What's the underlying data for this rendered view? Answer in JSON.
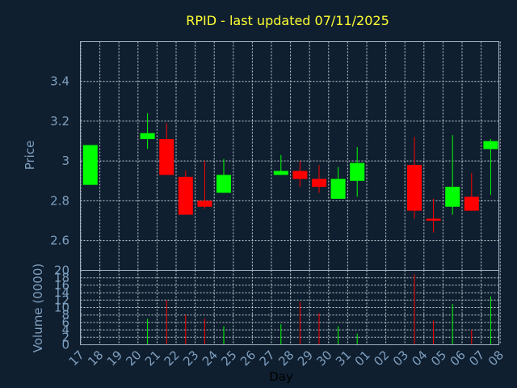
{
  "chart_data": {
    "type": "candlestick",
    "title": "RPID - last updated 07/11/2025",
    "xlabel": "Day",
    "ylabel_price": "Price",
    "ylabel_volume": "Volume (0000)",
    "price_ylim": [
      2.45,
      3.6
    ],
    "price_yticks": [
      "3.4",
      "3.2",
      "3",
      "2.8",
      "2.6"
    ],
    "volume_ylim": [
      0,
      20
    ],
    "volume_yticks": [
      "20",
      "18",
      "16",
      "14",
      "12",
      "10",
      "8",
      "6",
      "4",
      "2",
      "0"
    ],
    "x_ticks": [
      "17",
      "18",
      "19",
      "20",
      "21",
      "22",
      "23",
      "24",
      "25",
      "26",
      "27",
      "28",
      "29",
      "30",
      "31",
      "01",
      "02",
      "03",
      "04",
      "05",
      "06",
      "07",
      "08"
    ],
    "colors": {
      "up": "#00ff00",
      "down": "#ff0000"
    },
    "candles": [
      {
        "day": "17",
        "open": 2.88,
        "high": 3.08,
        "low": 2.88,
        "close": 3.08,
        "volume": 0
      },
      {
        "day": "20",
        "open": 3.11,
        "high": 3.24,
        "low": 3.06,
        "close": 3.14,
        "volume": 7
      },
      {
        "day": "21",
        "open": 3.11,
        "high": 3.19,
        "low": 2.93,
        "close": 2.93,
        "volume": 12
      },
      {
        "day": "22",
        "open": 2.92,
        "high": 2.95,
        "low": 2.73,
        "close": 2.73,
        "volume": 8
      },
      {
        "day": "23",
        "open": 2.8,
        "high": 3.0,
        "low": 2.76,
        "close": 2.77,
        "volume": 7
      },
      {
        "day": "24",
        "open": 2.84,
        "high": 3.01,
        "low": 2.84,
        "close": 2.93,
        "volume": 5
      },
      {
        "day": "27",
        "open": 2.93,
        "high": 3.03,
        "low": 2.93,
        "close": 2.95,
        "volume": 5.5
      },
      {
        "day": "28",
        "open": 2.95,
        "high": 3.0,
        "low": 2.87,
        "close": 2.91,
        "volume": 11.5
      },
      {
        "day": "29",
        "open": 2.91,
        "high": 2.98,
        "low": 2.84,
        "close": 2.87,
        "volume": 8.5
      },
      {
        "day": "30",
        "open": 2.81,
        "high": 2.97,
        "low": 2.81,
        "close": 2.91,
        "volume": 5
      },
      {
        "day": "31",
        "open": 2.9,
        "high": 3.07,
        "low": 2.82,
        "close": 2.99,
        "volume": 3
      },
      {
        "day": "03",
        "open": 2.98,
        "high": 3.12,
        "low": 2.71,
        "close": 2.75,
        "volume": 19
      },
      {
        "day": "04",
        "open": 2.71,
        "high": 2.81,
        "low": 2.64,
        "close": 2.7,
        "volume": 6.5
      },
      {
        "day": "05",
        "open": 2.77,
        "high": 3.13,
        "low": 2.73,
        "close": 2.87,
        "volume": 11
      },
      {
        "day": "06",
        "open": 2.82,
        "high": 2.94,
        "low": 2.75,
        "close": 2.75,
        "volume": 4
      },
      {
        "day": "07",
        "open": 3.06,
        "high": 3.11,
        "low": 2.83,
        "close": 3.1,
        "volume": 13
      }
    ]
  }
}
